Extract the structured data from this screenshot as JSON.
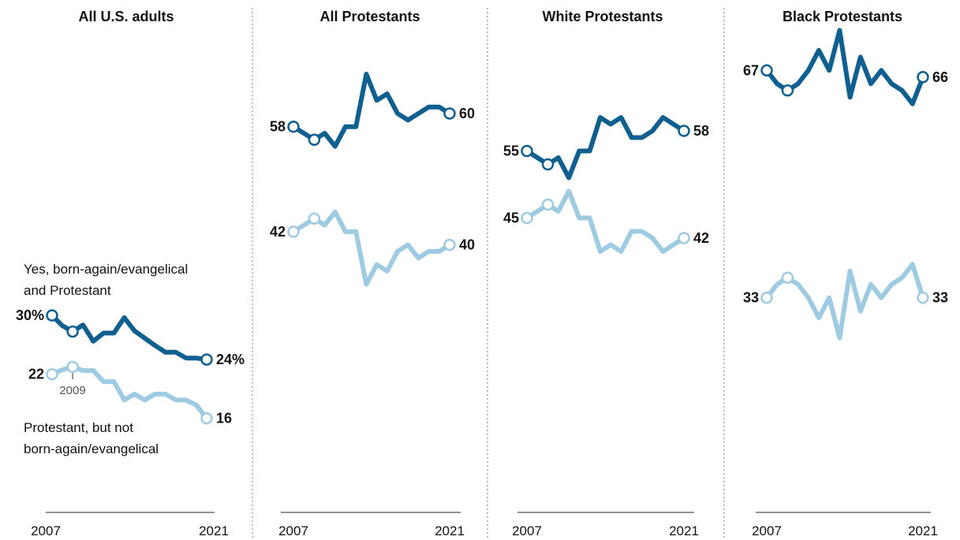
{
  "colors": {
    "dark_series": "#0f5f91",
    "light_series": "#9fcbe2",
    "axis": "#555555",
    "divider": "#999999",
    "text": "#111111",
    "annotation": "#555555"
  },
  "annotations": {
    "dark_label_line1": "Yes, born-again/evangelical",
    "dark_label_line2": "and Protestant",
    "light_label_line1": "Protestant, but not",
    "light_label_line2": "born-again/evangelical",
    "year_marker": "2009"
  },
  "chart_data": [
    {
      "type": "line",
      "title": "All U.S. adults",
      "x_tick_labels": [
        "2007",
        "2021"
      ],
      "series": [
        {
          "name": "Yes, born-again/evangelical and Protestant",
          "color": "dark",
          "values": [
            30,
            28.6,
            27.8,
            28.7,
            26.5,
            27.6,
            27.6,
            29.7,
            27.9,
            26.9,
            25.9,
            25,
            25,
            24.2,
            24.2,
            24
          ],
          "start_label": "30%",
          "end_label": "24%"
        },
        {
          "name": "Protestant, but not born-again/evangelical",
          "color": "light",
          "values": [
            22,
            22.6,
            23,
            22.5,
            22.5,
            21,
            21,
            18.5,
            19.3,
            18.5,
            19.3,
            19.3,
            18.5,
            18.5,
            17.8,
            16
          ],
          "start_label": "22",
          "end_label": "16"
        }
      ]
    },
    {
      "type": "line",
      "title": "All Protestants",
      "x_tick_labels": [
        "2007",
        "2021"
      ],
      "series": [
        {
          "name": "Yes, born-again/evangelical and Protestant",
          "color": "dark",
          "values": [
            58,
            57,
            56,
            57,
            55,
            58,
            58,
            66,
            62,
            63,
            60,
            59,
            60,
            61,
            61,
            60
          ],
          "start_label": "58",
          "end_label": "60"
        },
        {
          "name": "Protestant, but not born-again/evangelical",
          "color": "light",
          "values": [
            42,
            43,
            44,
            43,
            45,
            42,
            42,
            34,
            37,
            36,
            39,
            40,
            38,
            39,
            39,
            40
          ],
          "start_label": "42",
          "end_label": "40"
        }
      ]
    },
    {
      "type": "line",
      "title": "White Protestants",
      "x_tick_labels": [
        "2007",
        "2021"
      ],
      "series": [
        {
          "name": "Yes, born-again/evangelical and Protestant",
          "color": "dark",
          "values": [
            55,
            54,
            53,
            54,
            51,
            55,
            55,
            60,
            59,
            60,
            57,
            57,
            58,
            60,
            59,
            58
          ],
          "start_label": "55",
          "end_label": "58"
        },
        {
          "name": "Protestant, but not born-again/evangelical",
          "color": "light",
          "values": [
            45,
            46,
            47,
            46,
            49,
            45,
            45,
            40,
            41,
            40,
            43,
            43,
            42,
            40,
            41,
            42
          ],
          "start_label": "45",
          "end_label": "42"
        }
      ]
    },
    {
      "type": "line",
      "title": "Black Protestants",
      "x_tick_labels": [
        "2007",
        "2021"
      ],
      "series": [
        {
          "name": "Yes, born-again/evangelical and Protestant",
          "color": "dark",
          "values": [
            67,
            65,
            64,
            65,
            67,
            70,
            67,
            73,
            63,
            69,
            65,
            67,
            65,
            64,
            62,
            66
          ],
          "start_label": "67",
          "end_label": "66"
        },
        {
          "name": "Protestant, but not born-again/evangelical",
          "color": "light",
          "values": [
            33,
            35,
            36,
            35,
            33,
            30,
            33,
            27,
            37,
            31,
            35,
            33,
            35,
            36,
            38,
            33
          ],
          "start_label": "33",
          "end_label": "33"
        }
      ]
    }
  ]
}
